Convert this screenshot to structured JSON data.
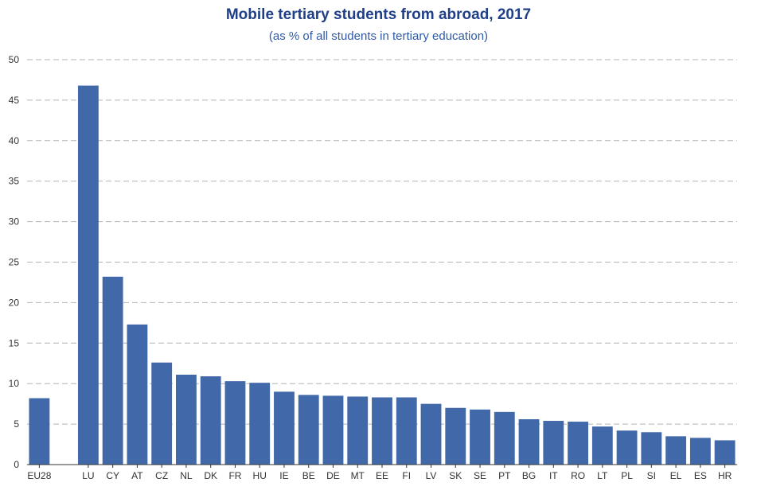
{
  "colors": {
    "title": "#1f3f88",
    "subtitle": "#2e5aa8",
    "bar": "#4169aa",
    "grid": "#b3b3b3",
    "axis": "#333333"
  },
  "chart_data": {
    "type": "bar",
    "title": "Mobile tertiary students from abroad, 2017",
    "subtitle": "(as % of all students in tertiary education)",
    "xlabel": "",
    "ylabel": "",
    "ylim": [
      0,
      50
    ],
    "yticks": [
      0,
      5,
      10,
      15,
      20,
      25,
      30,
      35,
      40,
      45,
      50
    ],
    "grid": true,
    "grid_style": "dashed",
    "legend": "none",
    "categories": [
      "EU28",
      "",
      "LU",
      "CY",
      "AT",
      "CZ",
      "NL",
      "DK",
      "FR",
      "HU",
      "IE",
      "BE",
      "DE",
      "MT",
      "EE",
      "FI",
      "LV",
      "SK",
      "SE",
      "PT",
      "BG",
      "IT",
      "RO",
      "LT",
      "PL",
      "SI",
      "EL",
      "ES",
      "HR"
    ],
    "values": [
      8.2,
      null,
      46.8,
      23.2,
      17.3,
      12.6,
      11.1,
      10.9,
      10.3,
      10.1,
      9.0,
      8.6,
      8.5,
      8.4,
      8.3,
      8.3,
      7.5,
      7.0,
      6.8,
      6.5,
      5.6,
      5.4,
      5.3,
      4.7,
      4.2,
      4.0,
      3.5,
      3.3,
      3.0
    ]
  }
}
